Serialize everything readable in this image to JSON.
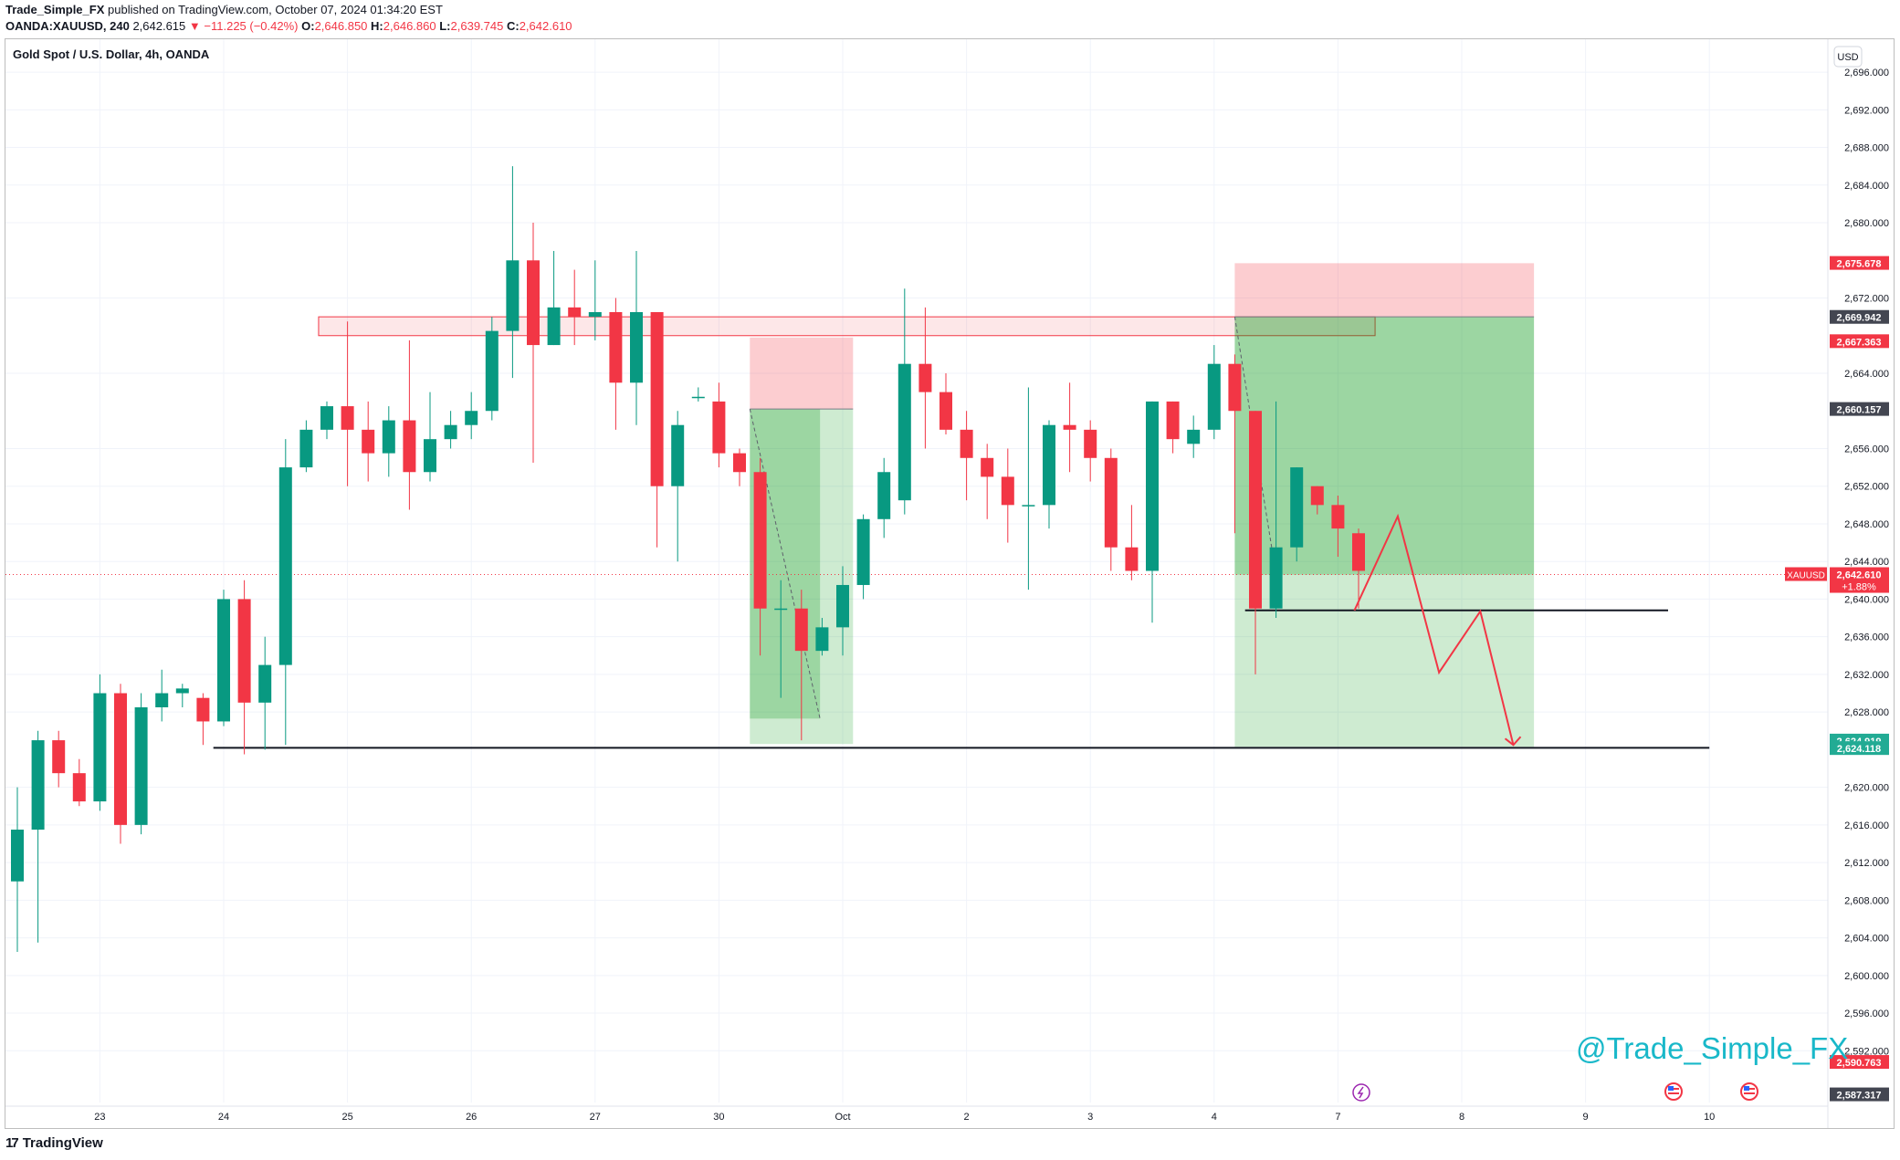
{
  "header": {
    "author": "Trade_Simple_FX",
    "published_text": "published on TradingView.com, October 07, 2024 01:34:20 EST",
    "symbol_line": "OANDA:XAUUSD, 240",
    "last_price": "2,642.615",
    "change": "▼ −11.225 (−0.42%)",
    "o_label": "O:",
    "o_value": "2,646.850",
    "h_label": "H:",
    "h_value": "2,646.860",
    "l_label": "L:",
    "l_value": "2,639.745",
    "c_label": "C:",
    "c_value": "2,642.610"
  },
  "footer": {
    "logo": "17",
    "brand": "TradingView"
  },
  "chart_data": {
    "type": "candlestick",
    "title": "Gold Spot / U.S. Dollar, 4h, OANDA",
    "currency_button": "USD",
    "watermark": "@Trade_Simple_FX",
    "ylim": [
      2586.5,
      2699.5
    ],
    "y_ticks": [
      2592,
      2596,
      2600,
      2604,
      2608,
      2612,
      2616,
      2620,
      2628,
      2632,
      2636,
      2640,
      2644,
      2648,
      2652,
      2656,
      2664,
      2672,
      2680,
      2684,
      2688,
      2692,
      2696
    ],
    "x_ticks": [
      {
        "label": "23",
        "i": 4
      },
      {
        "label": "24",
        "i": 10
      },
      {
        "label": "25",
        "i": 16
      },
      {
        "label": "26",
        "i": 22
      },
      {
        "label": "27",
        "i": 28
      },
      {
        "label": "30",
        "i": 34
      },
      {
        "label": "Oct",
        "i": 40
      },
      {
        "label": "2",
        "i": 46
      },
      {
        "label": "3",
        "i": 52
      },
      {
        "label": "4",
        "i": 58
      },
      {
        "label": "7",
        "i": 64
      },
      {
        "label": "8",
        "i": 70
      },
      {
        "label": "9",
        "i": 76
      },
      {
        "label": "10",
        "i": 82
      }
    ],
    "candles": [
      [
        2610,
        2615.5,
        2602.5,
        2620
      ],
      [
        2615.5,
        2625,
        2603.5,
        2626
      ],
      [
        2625,
        2621.5,
        2620,
        2626
      ],
      [
        2621.5,
        2618.5,
        2618,
        2623
      ],
      [
        2618.5,
        2630,
        2617.5,
        2632
      ],
      [
        2630,
        2616,
        2614,
        2631
      ],
      [
        2616,
        2628.5,
        2615,
        2630
      ],
      [
        2628.5,
        2630,
        2627,
        2632.5
      ],
      [
        2630,
        2630.5,
        2628.5,
        2631
      ],
      [
        2629.5,
        2627,
        2624.5,
        2630
      ],
      [
        2627,
        2640,
        2626.5,
        2641
      ],
      [
        2640,
        2629,
        2623.5,
        2642
      ],
      [
        2629,
        2633,
        2624,
        2636
      ],
      [
        2633,
        2654,
        2624.5,
        2657
      ],
      [
        2654,
        2658,
        2653.5,
        2659
      ],
      [
        2658,
        2660.5,
        2657,
        2661
      ],
      [
        2660.5,
        2658,
        2652,
        2669.5
      ],
      [
        2658,
        2655.5,
        2652.5,
        2661
      ],
      [
        2655.5,
        2659,
        2653,
        2660.5
      ],
      [
        2659,
        2653.5,
        2649.5,
        2667.5
      ],
      [
        2653.5,
        2657,
        2652.5,
        2662
      ],
      [
        2657,
        2658.5,
        2656,
        2660
      ],
      [
        2658.5,
        2660,
        2657,
        2662
      ],
      [
        2660,
        2668.5,
        2659,
        2670
      ],
      [
        2668.5,
        2676,
        2663.5,
        2686
      ],
      [
        2676,
        2667,
        2654.5,
        2680
      ],
      [
        2667,
        2671,
        2667,
        2677
      ],
      [
        2671,
        2670,
        2667,
        2675
      ],
      [
        2670,
        2670.5,
        2667.5,
        2676
      ],
      [
        2670.5,
        2663,
        2658,
        2672
      ],
      [
        2663,
        2670.5,
        2658.5,
        2677
      ],
      [
        2670.5,
        2652,
        2645.5,
        2670.5
      ],
      [
        2652,
        2658.5,
        2644,
        2660
      ],
      [
        2661.5,
        2661.5,
        2661,
        2662.5
      ],
      [
        2661,
        2655.5,
        2654,
        2663
      ],
      [
        2655.5,
        2653.5,
        2652,
        2656
      ],
      [
        2653.5,
        2639,
        2634,
        2655
      ],
      [
        2639,
        2639,
        2629.5,
        2642
      ],
      [
        2639,
        2634.5,
        2625,
        2641
      ],
      [
        2634.5,
        2637,
        2634,
        2638
      ],
      [
        2637,
        2641.5,
        2634,
        2643.5
      ],
      [
        2641.5,
        2648.5,
        2640,
        2649
      ],
      [
        2648.5,
        2653.5,
        2646.5,
        2655
      ],
      [
        2650.5,
        2665,
        2649,
        2673
      ],
      [
        2665,
        2662,
        2656,
        2671
      ],
      [
        2662,
        2658,
        2657.5,
        2664
      ],
      [
        2658,
        2655,
        2650.5,
        2660
      ],
      [
        2655,
        2653,
        2648.5,
        2656.5
      ],
      [
        2653,
        2650,
        2646,
        2656
      ],
      [
        2650,
        2650,
        2641,
        2662.5
      ],
      [
        2650,
        2658.5,
        2647.5,
        2659
      ],
      [
        2658.5,
        2658,
        2653.5,
        2663
      ],
      [
        2658,
        2655,
        2652.5,
        2659
      ],
      [
        2655,
        2645.5,
        2643,
        2656
      ],
      [
        2645.5,
        2643,
        2642,
        2650
      ],
      [
        2643,
        2661,
        2637.5,
        2661
      ],
      [
        2661,
        2657,
        2655.5,
        2661
      ],
      [
        2656.5,
        2658,
        2655,
        2659.5
      ],
      [
        2658,
        2665,
        2657,
        2667
      ],
      [
        2665,
        2660,
        2647,
        2666
      ],
      [
        2660,
        2639,
        2632,
        2660
      ],
      [
        2639,
        2645.5,
        2638,
        2661
      ],
      [
        2645.5,
        2654,
        2644,
        2654
      ],
      [
        2652,
        2650,
        2649,
        2652
      ],
      [
        2650,
        2647.5,
        2644.5,
        2651
      ],
      [
        2647,
        2643,
        2639,
        2647.5
      ]
    ],
    "price_labels": [
      {
        "value": "2,675.678",
        "price": 2675.678,
        "color": "#f23645"
      },
      {
        "value": "2,669.942",
        "price": 2669.942,
        "color": "#434651"
      },
      {
        "value": "2,667.363",
        "price": 2667.363,
        "color": "#f23645"
      },
      {
        "value": "2,660.157",
        "price": 2660.157,
        "color": "#434651"
      },
      {
        "value": "2,642.610",
        "sub": "+1.88%",
        "price": 2642.61,
        "color": "#f23645",
        "tag": "XAUUSD"
      },
      {
        "value": "2,624.919",
        "price": 2624.919,
        "color": "#22ab94"
      },
      {
        "value": "2,624.118",
        "price": 2624.118,
        "color": "#22ab94"
      },
      {
        "value": "2,590.763",
        "price": 2590.763,
        "color": "#f23645"
      },
      {
        "value": "2,587.317",
        "price": 2587.317,
        "color": "#434651"
      }
    ],
    "resistance_zone": {
      "i_from": 14.6,
      "i_to": 65.8,
      "high": 2670,
      "low": 2668
    },
    "support_lines": [
      {
        "i_from": 9.5,
        "i_to": 82,
        "price": 2624.2
      },
      {
        "i_from": 59.5,
        "i_to": 80,
        "price": 2638.8
      }
    ],
    "positions": [
      {
        "i_from": 35.5,
        "i_mid": 38.9,
        "i_to": 40.5,
        "stop": 2667.8,
        "entry": 2660.2,
        "exit": 2627.3,
        "target": 2624.6
      },
      {
        "i_from": 59,
        "i_mid": 61,
        "i_to": 73.5,
        "stop": 2675.7,
        "entry": 2670,
        "exit": 2642.6,
        "target": 2624.3
      }
    ],
    "forecast_path": [
      [
        64.8,
        2638.8
      ],
      [
        66.9,
        2648.8
      ],
      [
        68.9,
        2632.2
      ],
      [
        70.9,
        2638.7
      ],
      [
        72.5,
        2624.5
      ]
    ],
    "price_line": 2642.61
  }
}
